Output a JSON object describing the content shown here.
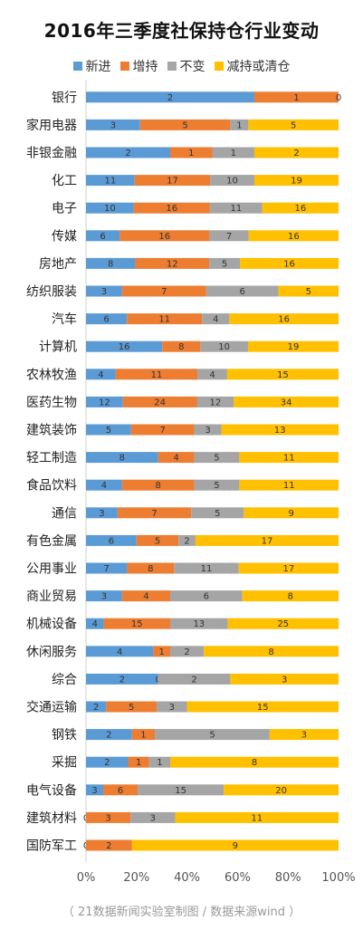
{
  "chart_data": {
    "type": "bar",
    "stacked": "percent",
    "orientation": "horizontal",
    "title": "2016年三季度社保持仓行业变动",
    "source": "（ 21数据新闻实验室制图 / 数据来源wind ）",
    "legend_position": "top",
    "x_ticks": [
      "0%",
      "20%",
      "40%",
      "60%",
      "80%",
      "100%"
    ],
    "xlim": [
      0,
      100
    ],
    "grid": false,
    "series": [
      {
        "name": "新进",
        "color": "#5B9BD5"
      },
      {
        "name": "增持",
        "color": "#ED7D31"
      },
      {
        "name": "不变",
        "color": "#A5A5A5"
      },
      {
        "name": "减持或清仓",
        "color": "#FFC000"
      }
    ],
    "categories": [
      "银行",
      "家用电器",
      "非银金融",
      "化工",
      "电子",
      "传媒",
      "房地产",
      "纺织服装",
      "汽车",
      "计算机",
      "农林牧渔",
      "医药生物",
      "建筑装饰",
      "轻工制造",
      "食品饮料",
      "通信",
      "有色金属",
      "公用事业",
      "商业贸易",
      "机械设备",
      "休闲服务",
      "综合",
      "交通运输",
      "钢铁",
      "采掘",
      "电气设备",
      "建筑材料",
      "国防军工"
    ],
    "values": [
      [
        2,
        1,
        0,
        0
      ],
      [
        3,
        5,
        1,
        5
      ],
      [
        2,
        1,
        1,
        2
      ],
      [
        11,
        17,
        10,
        19
      ],
      [
        10,
        16,
        11,
        16
      ],
      [
        6,
        16,
        7,
        16
      ],
      [
        8,
        12,
        5,
        16
      ],
      [
        3,
        7,
        6,
        5
      ],
      [
        6,
        11,
        4,
        16
      ],
      [
        16,
        8,
        10,
        19
      ],
      [
        4,
        11,
        4,
        15
      ],
      [
        12,
        24,
        12,
        34
      ],
      [
        5,
        7,
        3,
        13
      ],
      [
        8,
        4,
        5,
        11
      ],
      [
        4,
        8,
        5,
        11
      ],
      [
        3,
        7,
        5,
        9
      ],
      [
        6,
        5,
        2,
        17
      ],
      [
        7,
        8,
        11,
        17
      ],
      [
        3,
        4,
        6,
        8
      ],
      [
        4,
        15,
        13,
        25
      ],
      [
        4,
        1,
        2,
        8
      ],
      [
        2,
        0,
        2,
        3
      ],
      [
        2,
        5,
        3,
        15
      ],
      [
        2,
        1,
        5,
        3
      ],
      [
        2,
        1,
        1,
        8
      ],
      [
        3,
        6,
        15,
        20
      ],
      [
        0,
        3,
        3,
        11
      ],
      [
        0,
        2,
        0,
        9
      ]
    ],
    "labels": [
      [
        "2",
        "1",
        "",
        "0"
      ],
      [
        "3",
        "5",
        "1",
        "5"
      ],
      [
        "2",
        "1",
        "1",
        "2"
      ],
      [
        "11",
        "17",
        "10",
        "19"
      ],
      [
        "10",
        "16",
        "11",
        "16"
      ],
      [
        "6",
        "16",
        "7",
        "16"
      ],
      [
        "8",
        "12",
        "5",
        "16"
      ],
      [
        "3",
        "7",
        "6",
        "5"
      ],
      [
        "6",
        "11",
        "4",
        "16"
      ],
      [
        "16",
        "8",
        "10",
        "19"
      ],
      [
        "4",
        "11",
        "4",
        "15"
      ],
      [
        "12",
        "24",
        "12",
        "34"
      ],
      [
        "5",
        "7",
        "3",
        "13"
      ],
      [
        "8",
        "4",
        "5",
        "11"
      ],
      [
        "4",
        "8",
        "5",
        "11"
      ],
      [
        "3",
        "7",
        "5",
        "9"
      ],
      [
        "6",
        "5",
        "2",
        "17"
      ],
      [
        "7",
        "8",
        "11",
        "17"
      ],
      [
        "3",
        "4",
        "6",
        "8"
      ],
      [
        "4",
        "15",
        "13",
        "25"
      ],
      [
        "4",
        "1",
        "2",
        "8"
      ],
      [
        "2",
        "0",
        "2",
        "3"
      ],
      [
        "2",
        "5",
        "3",
        "15"
      ],
      [
        "2",
        "1",
        "5",
        "3"
      ],
      [
        "2",
        "1",
        "1",
        "8"
      ],
      [
        "3",
        "6",
        "15",
        "20"
      ],
      [
        "0",
        "3",
        "3",
        "11"
      ],
      [
        "0",
        "2",
        "",
        "9"
      ]
    ]
  }
}
